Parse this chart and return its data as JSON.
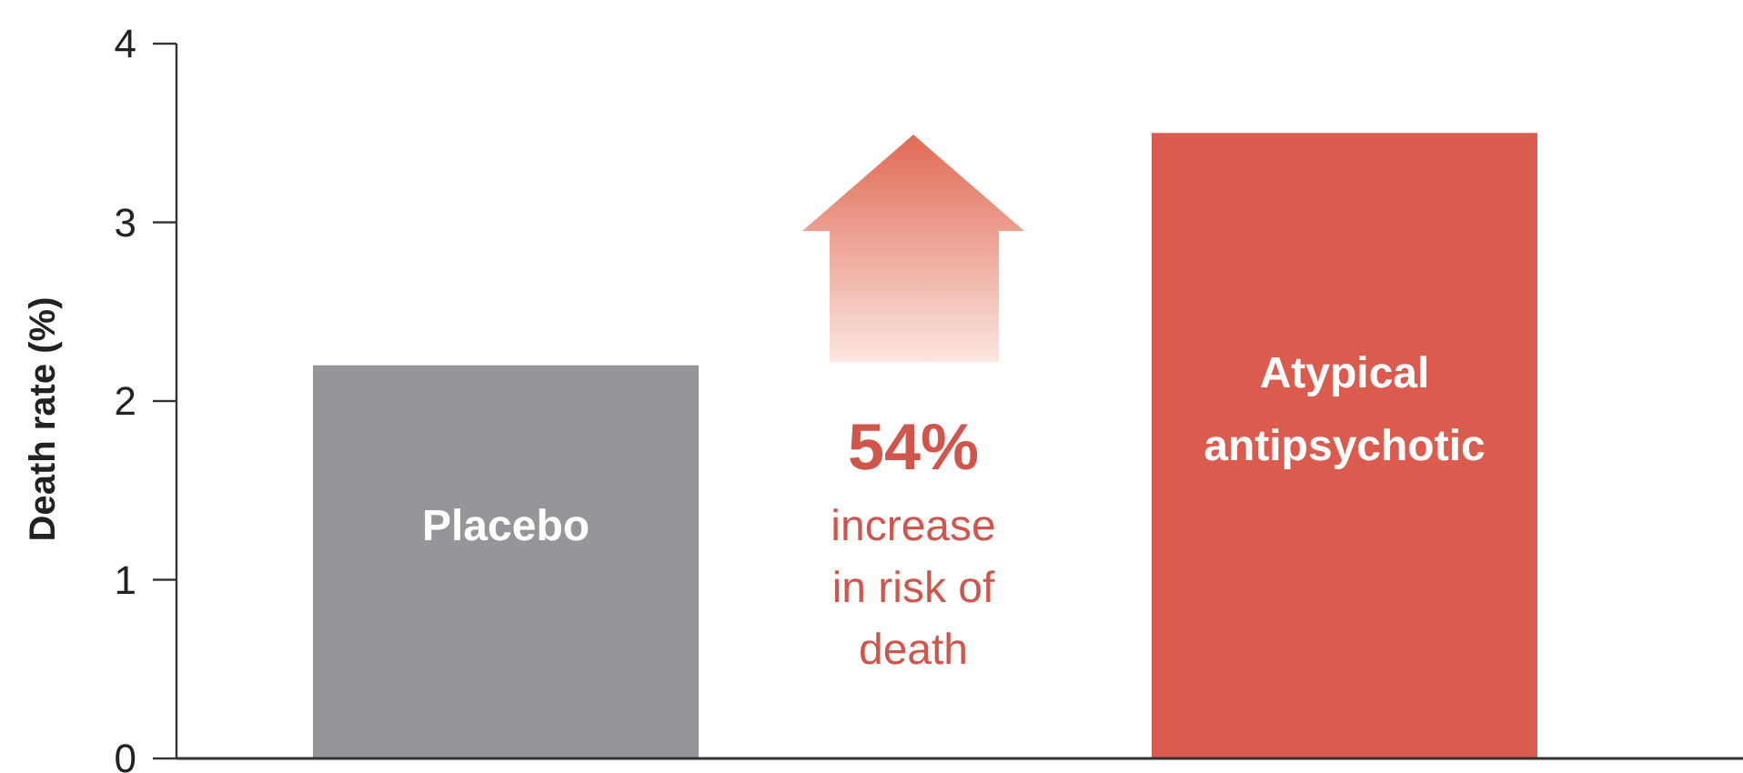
{
  "chart_data": {
    "type": "bar",
    "ylabel": "Death rate (%)",
    "categories": [
      "Placebo",
      "Atypical antipsychotic"
    ],
    "values": [
      2.2,
      3.5
    ],
    "colors": [
      "#959699",
      "#db5b4e"
    ],
    "ylim": [
      0,
      4
    ],
    "yticks": [
      0,
      1,
      2,
      3,
      4
    ],
    "annotations": [
      "54%",
      "increase in risk of death"
    ]
  }
}
